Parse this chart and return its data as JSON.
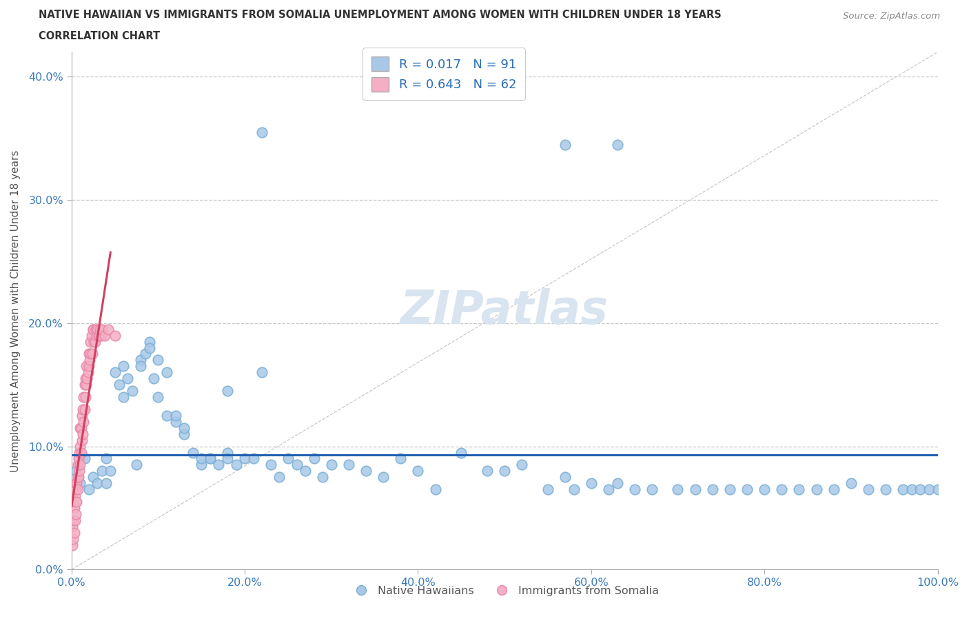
{
  "title_line1": "NATIVE HAWAIIAN VS IMMIGRANTS FROM SOMALIA UNEMPLOYMENT AMONG WOMEN WITH CHILDREN UNDER 18 YEARS",
  "title_line2": "CORRELATION CHART",
  "source": "Source: ZipAtlas.com",
  "ylabel": "Unemployment Among Women with Children Under 18 years",
  "xlim": [
    0.0,
    1.0
  ],
  "ylim": [
    0.0,
    0.42
  ],
  "xticks": [
    0.0,
    0.2,
    0.4,
    0.6,
    0.8,
    1.0
  ],
  "xticklabels": [
    "0.0%",
    "20.0%",
    "40.0%",
    "60.0%",
    "80.0%",
    "100.0%"
  ],
  "yticks": [
    0.0,
    0.1,
    0.2,
    0.3,
    0.4
  ],
  "yticklabels": [
    "0.0%",
    "10.0%",
    "20.0%",
    "30.0%",
    "40.0%"
  ],
  "color_blue": "#a8c8e8",
  "color_blue_edge": "#7aafd4",
  "color_pink": "#f4afc4",
  "color_pink_edge": "#e888a8",
  "color_blue_line": "#2060b0",
  "color_pink_line": "#d04060",
  "color_diag": "#c0c0c0",
  "color_grid": "#c8c8c8",
  "watermark_color": "#d8e4f0",
  "legend_label1": "R = 0.017   N = 91",
  "legend_label2": "R = 0.643   N = 62",
  "bottom_label1": "Native Hawaiians",
  "bottom_label2": "Immigrants from Somalia",
  "nh_x": [
    0.005,
    0.01,
    0.015,
    0.02,
    0.025,
    0.03,
    0.035,
    0.04,
    0.04,
    0.045,
    0.05,
    0.055,
    0.06,
    0.06,
    0.065,
    0.07,
    0.075,
    0.08,
    0.08,
    0.085,
    0.09,
    0.09,
    0.095,
    0.1,
    0.1,
    0.11,
    0.11,
    0.12,
    0.12,
    0.13,
    0.13,
    0.14,
    0.15,
    0.15,
    0.16,
    0.16,
    0.17,
    0.18,
    0.18,
    0.19,
    0.2,
    0.21,
    0.22,
    0.23,
    0.24,
    0.25,
    0.26,
    0.27,
    0.28,
    0.29,
    0.3,
    0.32,
    0.34,
    0.36,
    0.38,
    0.4,
    0.42,
    0.45,
    0.48,
    0.5,
    0.52,
    0.55,
    0.57,
    0.58,
    0.6,
    0.62,
    0.63,
    0.65,
    0.67,
    0.7,
    0.72,
    0.74,
    0.76,
    0.78,
    0.8,
    0.82,
    0.84,
    0.86,
    0.88,
    0.9,
    0.92,
    0.94,
    0.96,
    0.97,
    0.98,
    0.99,
    1.0,
    0.18,
    0.22,
    0.57,
    0.63
  ],
  "nh_y": [
    0.08,
    0.07,
    0.09,
    0.065,
    0.075,
    0.07,
    0.08,
    0.09,
    0.07,
    0.08,
    0.16,
    0.15,
    0.165,
    0.14,
    0.155,
    0.145,
    0.085,
    0.17,
    0.165,
    0.175,
    0.185,
    0.18,
    0.155,
    0.14,
    0.17,
    0.16,
    0.125,
    0.12,
    0.125,
    0.11,
    0.115,
    0.095,
    0.085,
    0.09,
    0.09,
    0.09,
    0.085,
    0.095,
    0.09,
    0.085,
    0.09,
    0.09,
    0.355,
    0.085,
    0.075,
    0.09,
    0.085,
    0.08,
    0.09,
    0.075,
    0.085,
    0.085,
    0.08,
    0.075,
    0.09,
    0.08,
    0.065,
    0.095,
    0.08,
    0.08,
    0.085,
    0.065,
    0.075,
    0.065,
    0.07,
    0.065,
    0.07,
    0.065,
    0.065,
    0.065,
    0.065,
    0.065,
    0.065,
    0.065,
    0.065,
    0.065,
    0.065,
    0.065,
    0.065,
    0.07,
    0.065,
    0.065,
    0.065,
    0.065,
    0.065,
    0.065,
    0.065,
    0.145,
    0.16,
    0.345,
    0.345
  ],
  "som_x": [
    0.001,
    0.001,
    0.002,
    0.002,
    0.003,
    0.003,
    0.004,
    0.004,
    0.005,
    0.005,
    0.005,
    0.005,
    0.006,
    0.006,
    0.007,
    0.007,
    0.007,
    0.008,
    0.008,
    0.009,
    0.009,
    0.01,
    0.01,
    0.01,
    0.011,
    0.011,
    0.012,
    0.012,
    0.013,
    0.013,
    0.014,
    0.014,
    0.015,
    0.015,
    0.016,
    0.016,
    0.017,
    0.017,
    0.018,
    0.019,
    0.02,
    0.02,
    0.021,
    0.022,
    0.022,
    0.023,
    0.024,
    0.025,
    0.025,
    0.026,
    0.027,
    0.028,
    0.029,
    0.03,
    0.031,
    0.032,
    0.033,
    0.034,
    0.035,
    0.038,
    0.042,
    0.05
  ],
  "som_y": [
    0.02,
    0.035,
    0.025,
    0.04,
    0.03,
    0.05,
    0.04,
    0.06,
    0.045,
    0.065,
    0.07,
    0.055,
    0.055,
    0.07,
    0.065,
    0.075,
    0.085,
    0.075,
    0.09,
    0.08,
    0.095,
    0.085,
    0.1,
    0.115,
    0.095,
    0.115,
    0.105,
    0.125,
    0.11,
    0.13,
    0.12,
    0.14,
    0.13,
    0.15,
    0.14,
    0.155,
    0.15,
    0.165,
    0.155,
    0.16,
    0.165,
    0.175,
    0.17,
    0.175,
    0.185,
    0.19,
    0.175,
    0.195,
    0.195,
    0.185,
    0.185,
    0.195,
    0.19,
    0.195,
    0.19,
    0.19,
    0.195,
    0.19,
    0.195,
    0.19,
    0.195,
    0.19
  ]
}
